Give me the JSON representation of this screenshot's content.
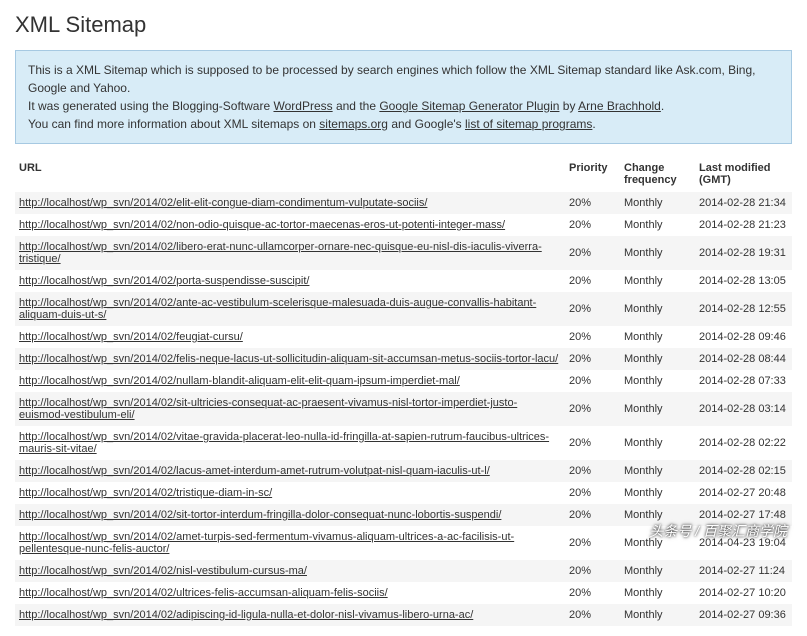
{
  "page": {
    "title": "XML Sitemap"
  },
  "info": {
    "line1_a": "This is a XML Sitemap which is supposed to be processed by search engines which follow the XML Sitemap standard like Ask.com, Bing, Google and Yahoo.",
    "line2_a": "It was generated using the Blogging-Software ",
    "line2_link1": "WordPress",
    "line2_b": " and the ",
    "line2_link2": "Google Sitemap Generator Plugin",
    "line2_c": " by ",
    "line2_link3": "Arne Brachhold",
    "line2_d": ".",
    "line3_a": "You can find more information about XML sitemaps on ",
    "line3_link1": "sitemaps.org",
    "line3_b": " and Google's ",
    "line3_link2": "list of sitemap programs",
    "line3_c": "."
  },
  "headers": {
    "url": "URL",
    "priority": "Priority",
    "change": "Change frequency",
    "modified": "Last modified (GMT)"
  },
  "rows": [
    {
      "url": "http://localhost/wp_svn/2014/02/elit-elit-congue-diam-condimentum-vulputate-sociis/",
      "priority": "20%",
      "change": "Monthly",
      "modified": "2014-02-28 21:34"
    },
    {
      "url": "http://localhost/wp_svn/2014/02/non-odio-quisque-ac-tortor-maecenas-eros-ut-potenti-integer-mass/",
      "priority": "20%",
      "change": "Monthly",
      "modified": "2014-02-28 21:23"
    },
    {
      "url": "http://localhost/wp_svn/2014/02/libero-erat-nunc-ullamcorper-ornare-nec-quisque-eu-nisl-dis-iaculis-viverra-tristique/",
      "priority": "20%",
      "change": "Monthly",
      "modified": "2014-02-28 19:31"
    },
    {
      "url": "http://localhost/wp_svn/2014/02/porta-suspendisse-suscipit/",
      "priority": "20%",
      "change": "Monthly",
      "modified": "2014-02-28 13:05"
    },
    {
      "url": "http://localhost/wp_svn/2014/02/ante-ac-vestibulum-scelerisque-malesuada-duis-augue-convallis-habitant-aliquam-duis-ut-s/",
      "priority": "20%",
      "change": "Monthly",
      "modified": "2014-02-28 12:55"
    },
    {
      "url": "http://localhost/wp_svn/2014/02/feugiat-cursu/",
      "priority": "20%",
      "change": "Monthly",
      "modified": "2014-02-28 09:46"
    },
    {
      "url": "http://localhost/wp_svn/2014/02/felis-neque-lacus-ut-sollicitudin-aliquam-sit-accumsan-metus-sociis-tortor-lacu/",
      "priority": "20%",
      "change": "Monthly",
      "modified": "2014-02-28 08:44"
    },
    {
      "url": "http://localhost/wp_svn/2014/02/nullam-blandit-aliquam-elit-elit-quam-ipsum-imperdiet-mal/",
      "priority": "20%",
      "change": "Monthly",
      "modified": "2014-02-28 07:33"
    },
    {
      "url": "http://localhost/wp_svn/2014/02/sit-ultricies-consequat-ac-praesent-vivamus-nisl-tortor-imperdiet-justo-euismod-vestibulum-eli/",
      "priority": "20%",
      "change": "Monthly",
      "modified": "2014-02-28 03:14"
    },
    {
      "url": "http://localhost/wp_svn/2014/02/vitae-gravida-placerat-leo-nulla-id-fringilla-at-sapien-rutrum-faucibus-ultrices-mauris-sit-vitae/",
      "priority": "20%",
      "change": "Monthly",
      "modified": "2014-02-28 02:22"
    },
    {
      "url": "http://localhost/wp_svn/2014/02/lacus-amet-interdum-amet-rutrum-volutpat-nisl-quam-iaculis-ut-l/",
      "priority": "20%",
      "change": "Monthly",
      "modified": "2014-02-28 02:15"
    },
    {
      "url": "http://localhost/wp_svn/2014/02/tristique-diam-in-sc/",
      "priority": "20%",
      "change": "Monthly",
      "modified": "2014-02-27 20:48"
    },
    {
      "url": "http://localhost/wp_svn/2014/02/sit-tortor-interdum-fringilla-dolor-consequat-nunc-lobortis-suspendi/",
      "priority": "20%",
      "change": "Monthly",
      "modified": "2014-02-27 17:48"
    },
    {
      "url": "http://localhost/wp_svn/2014/02/amet-turpis-sed-fermentum-vivamus-aliquam-ultrices-a-ac-facilisis-ut-pellentesque-nunc-felis-auctor/",
      "priority": "20%",
      "change": "Monthly",
      "modified": "2014-04-23 19:04"
    },
    {
      "url": "http://localhost/wp_svn/2014/02/nisl-vestibulum-cursus-ma/",
      "priority": "20%",
      "change": "Monthly",
      "modified": "2014-02-27 11:24"
    },
    {
      "url": "http://localhost/wp_svn/2014/02/ultrices-felis-accumsan-aliquam-felis-sociis/",
      "priority": "20%",
      "change": "Monthly",
      "modified": "2014-02-27 10:20"
    },
    {
      "url": "http://localhost/wp_svn/2014/02/adipiscing-id-ligula-nulla-et-dolor-nisl-vivamus-libero-urna-ac/",
      "priority": "20%",
      "change": "Monthly",
      "modified": "2014-02-27 09:36"
    }
  ],
  "watermark": "头条号 / 百聚汇商学院"
}
